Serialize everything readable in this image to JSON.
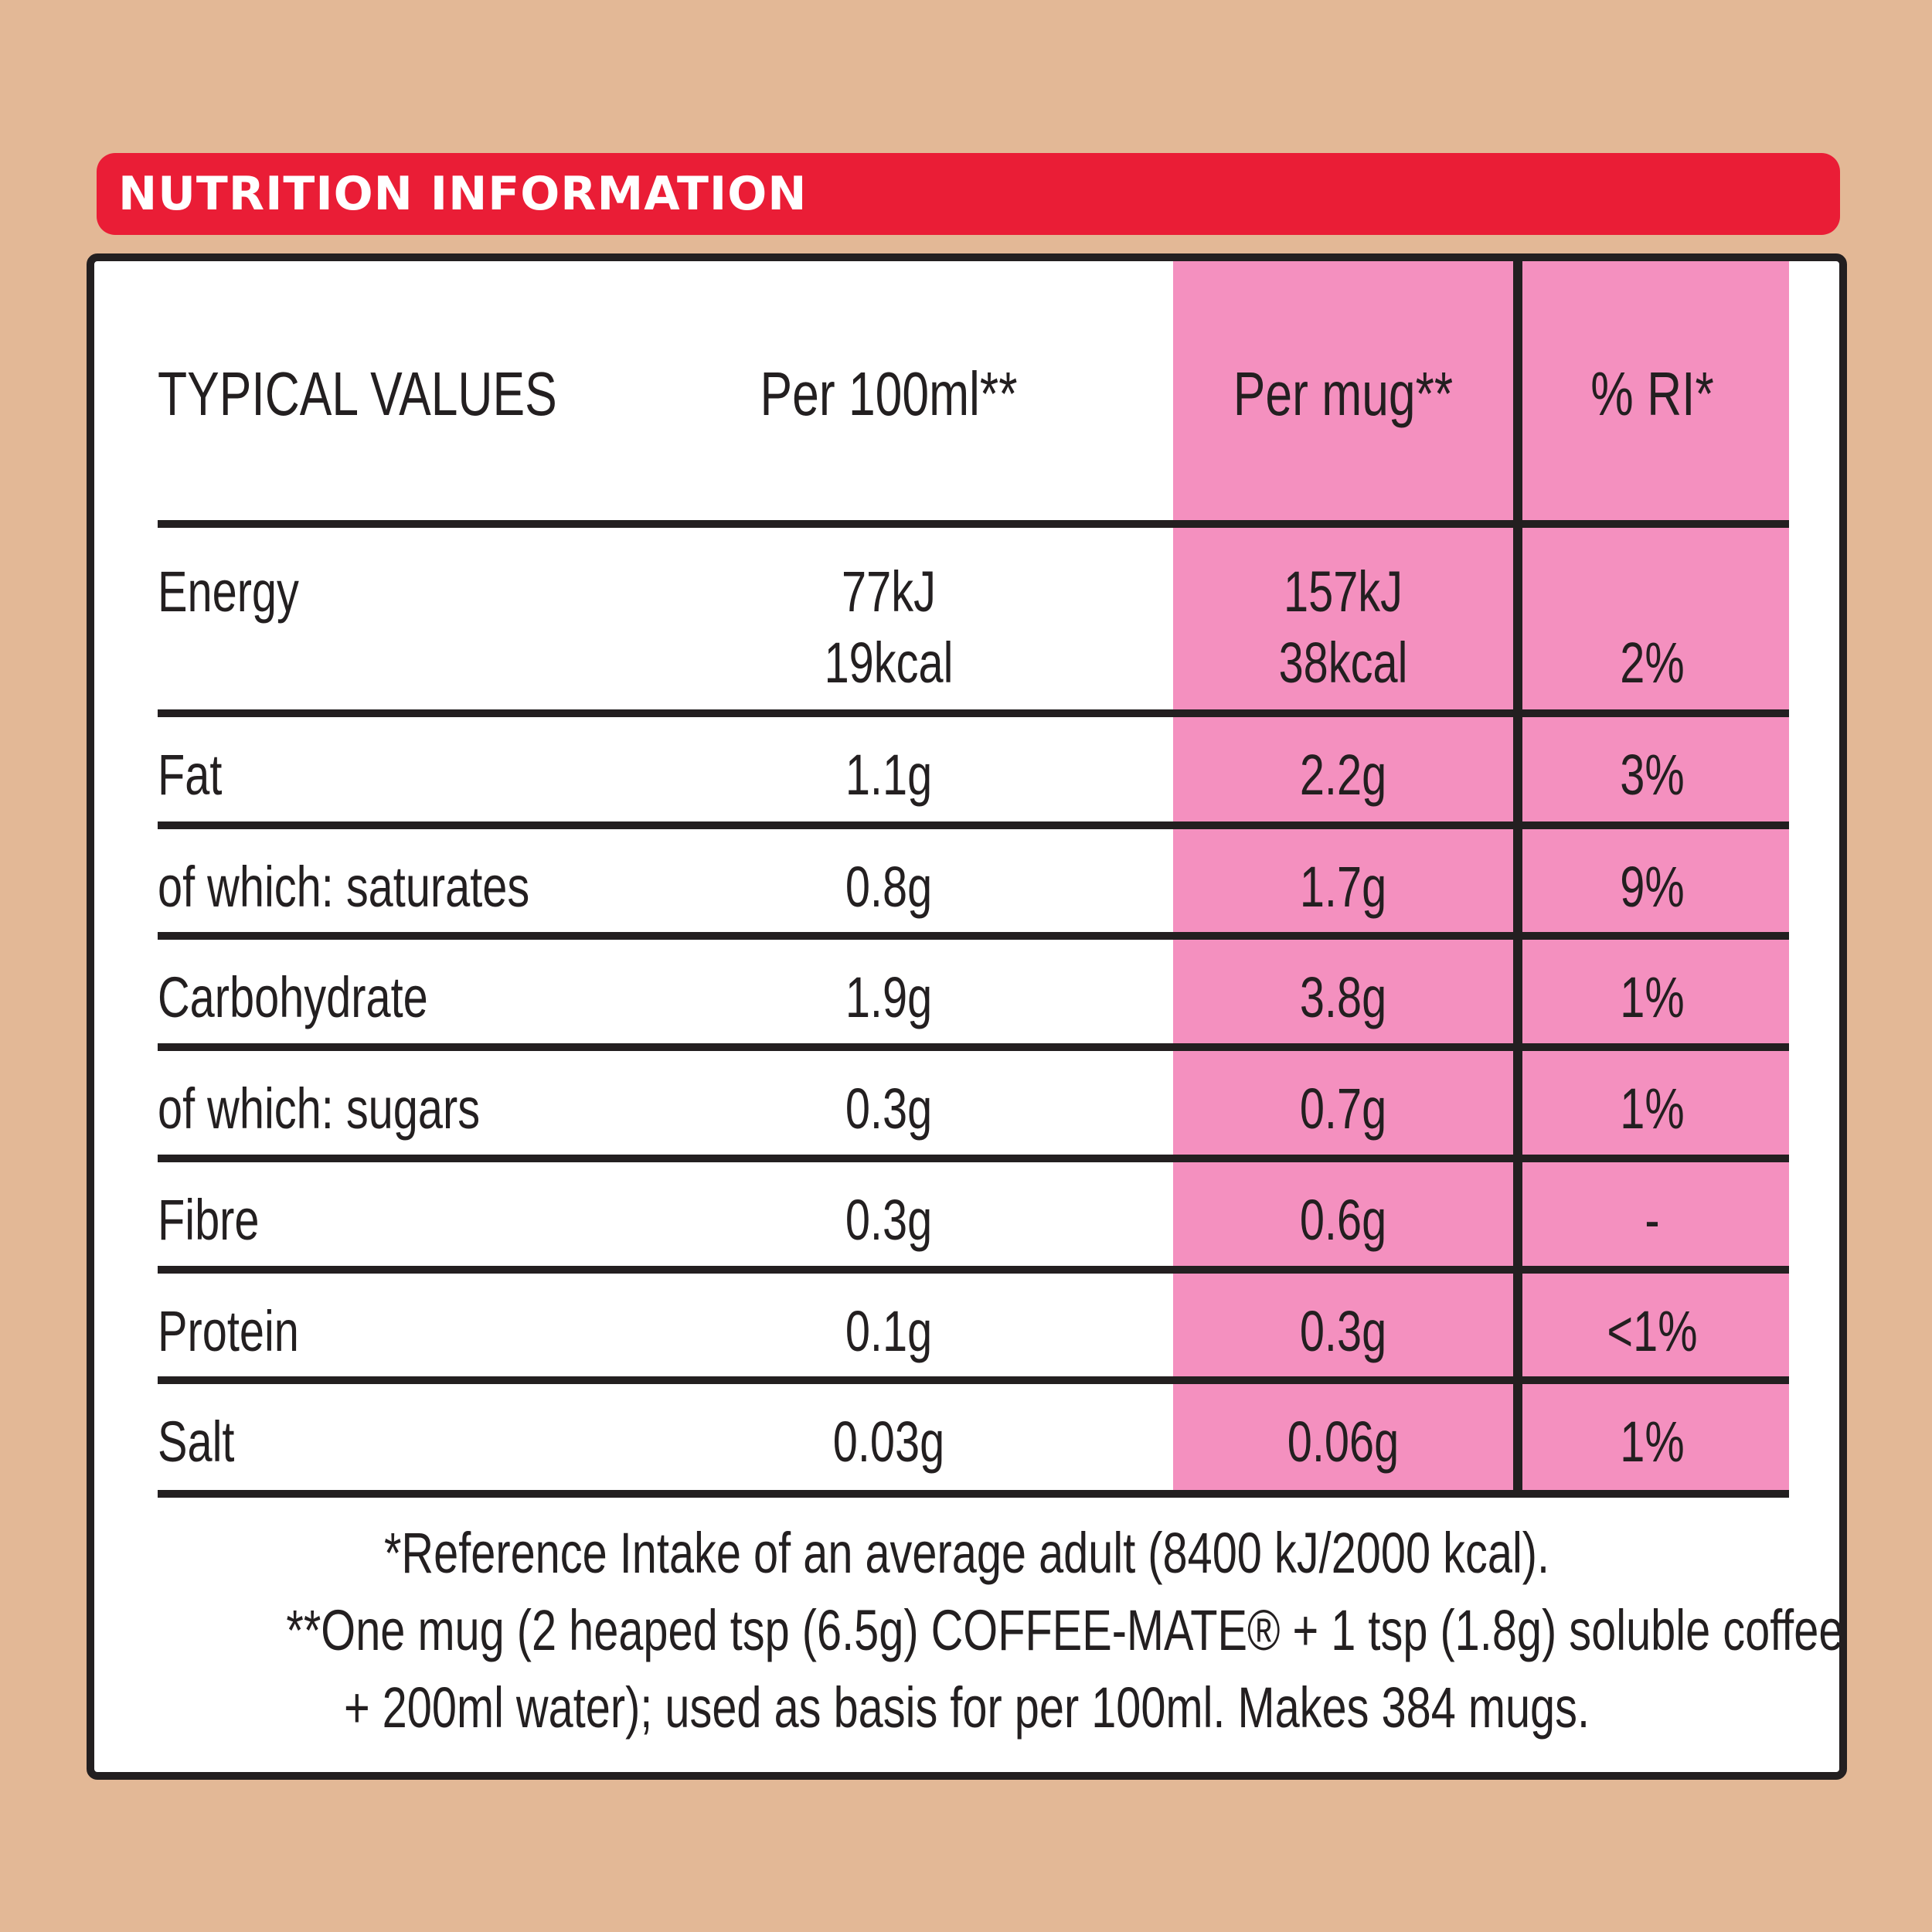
{
  "header": {
    "title": "NUTRITION INFORMATION"
  },
  "columns": {
    "label": "TYPICAL VALUES",
    "per100": "Per 100ml**",
    "permug": "Per mug**",
    "ri": "% RI*"
  },
  "rows": [
    {
      "label": "Energy",
      "per100": "77kJ",
      "per100_line2": "19kcal",
      "permug": "157kJ",
      "permug_line2": "38kcal",
      "ri": "2%"
    },
    {
      "label": "Fat",
      "per100": "1.1g",
      "permug": "2.2g",
      "ri": "3%"
    },
    {
      "label": "of which: saturates",
      "per100": "0.8g",
      "permug": "1.7g",
      "ri": "9%"
    },
    {
      "label": "Carbohydrate",
      "per100": "1.9g",
      "permug": "3.8g",
      "ri": "1%"
    },
    {
      "label": "of which: sugars",
      "per100": "0.3g",
      "permug": "0.7g",
      "ri": "1%"
    },
    {
      "label": "Fibre",
      "per100": "0.3g",
      "permug": "0.6g",
      "ri": "-"
    },
    {
      "label": "Protein",
      "per100": "0.1g",
      "permug": "0.3g",
      "ri": "<1%"
    },
    {
      "label": "Salt",
      "per100": "0.03g",
      "permug": "0.06g",
      "ri": "1%"
    }
  ],
  "footnotes": {
    "line1": "*Reference Intake of an average adult (8400 kJ/2000 kcal).",
    "line2": "**One mug (2 heaped tsp (6.5g) COFFEE-MATE® + 1 tsp (1.8g) soluble coffee",
    "line3": "+ 200ml water); used as basis for per 100ml. Makes 384 mugs."
  },
  "colors": {
    "background": "#e3b896",
    "banner": "#ea1d36",
    "pink": "#f490bf",
    "ink": "#231f20"
  }
}
